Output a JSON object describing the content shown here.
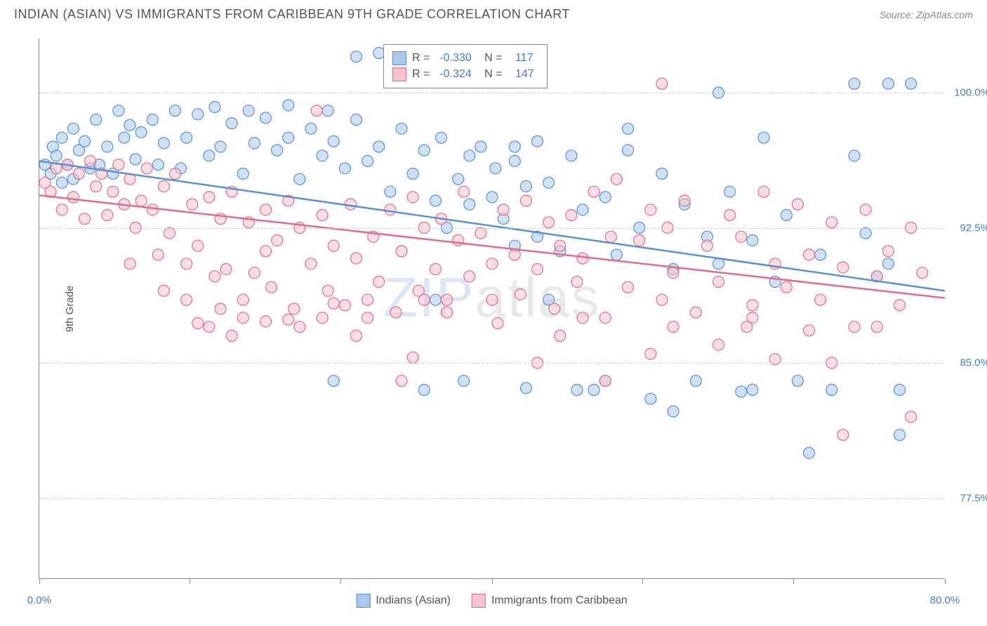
{
  "title": "INDIAN (ASIAN) VS IMMIGRANTS FROM CARIBBEAN 9TH GRADE CORRELATION CHART",
  "source": "Source: ZipAtlas.com",
  "ylabel": "9th Grade",
  "watermark_bold": "ZIP",
  "watermark_thin": "atlas",
  "chart": {
    "type": "scatter",
    "xlim": [
      0,
      80
    ],
    "ylim": [
      73,
      103
    ],
    "xticks": [
      0,
      13.3,
      26.6,
      40,
      53.3,
      66.6,
      80
    ],
    "xtick_labels": {
      "0": "0.0%",
      "80": "80.0%"
    },
    "yticks": [
      77.5,
      85.0,
      92.5,
      100.0
    ],
    "ytick_labels": [
      "77.5%",
      "85.0%",
      "92.5%",
      "100.0%"
    ],
    "grid_color": "#cccccc",
    "axis_color": "#888888",
    "background_color": "#ffffff",
    "marker_radius": 8,
    "marker_opacity": 0.55,
    "line_width": 2.5,
    "series": [
      {
        "name": "Indians (Asian)",
        "color_fill": "#a8c8ec",
        "color_stroke": "#5b8fd4",
        "R": "-0.330",
        "N": "117",
        "trend": {
          "x1": 0,
          "y1": 96.2,
          "x2": 80,
          "y2": 89.0
        },
        "points": [
          [
            0.5,
            96
          ],
          [
            1,
            95.5
          ],
          [
            1.2,
            97
          ],
          [
            1.5,
            96.5
          ],
          [
            2,
            95
          ],
          [
            2,
            97.5
          ],
          [
            2.5,
            96
          ],
          [
            3,
            98
          ],
          [
            3,
            95.2
          ],
          [
            3.5,
            96.8
          ],
          [
            4,
            97.3
          ],
          [
            4.5,
            95.8
          ],
          [
            5,
            98.5
          ],
          [
            5.3,
            96
          ],
          [
            6,
            97
          ],
          [
            6.5,
            95.5
          ],
          [
            7,
            99
          ],
          [
            7.5,
            97.5
          ],
          [
            8,
            98.2
          ],
          [
            8.5,
            96.3
          ],
          [
            9,
            97.8
          ],
          [
            10,
            98.5
          ],
          [
            10.5,
            96
          ],
          [
            11,
            97.2
          ],
          [
            12,
            99
          ],
          [
            12.5,
            95.8
          ],
          [
            13,
            97.5
          ],
          [
            14,
            98.8
          ],
          [
            15,
            96.5
          ],
          [
            15.5,
            99.2
          ],
          [
            16,
            97
          ],
          [
            17,
            98.3
          ],
          [
            18,
            95.5
          ],
          [
            18.5,
            99
          ],
          [
            19,
            97.2
          ],
          [
            20,
            98.6
          ],
          [
            21,
            96.8
          ],
          [
            22,
            97.5
          ],
          [
            22,
            99.3
          ],
          [
            23,
            95.2
          ],
          [
            24,
            98
          ],
          [
            25,
            96.5
          ],
          [
            25.5,
            99
          ],
          [
            26,
            97.3
          ],
          [
            27,
            95.8
          ],
          [
            28,
            98.5
          ],
          [
            28,
            102
          ],
          [
            29,
            96.2
          ],
          [
            30,
            97
          ],
          [
            30,
            102.2
          ],
          [
            31,
            94.5
          ],
          [
            32,
            98
          ],
          [
            33,
            95.5
          ],
          [
            34,
            96.8
          ],
          [
            35,
            94
          ],
          [
            35.5,
            97.5
          ],
          [
            36,
            92.5
          ],
          [
            37,
            95.2
          ],
          [
            38,
            96.5
          ],
          [
            38,
            93.8
          ],
          [
            39,
            97
          ],
          [
            40,
            94.2
          ],
          [
            40.3,
            95.8
          ],
          [
            41,
            93
          ],
          [
            42,
            96.2
          ],
          [
            42,
            91.5
          ],
          [
            43,
            94.8
          ],
          [
            44,
            92
          ],
          [
            44,
            97.3
          ],
          [
            45,
            95
          ],
          [
            46,
            91.2
          ],
          [
            47,
            96.5
          ],
          [
            48,
            93.5
          ],
          [
            49,
            83.5
          ],
          [
            50,
            94.2
          ],
          [
            51,
            91
          ],
          [
            52,
            96.8
          ],
          [
            53,
            92.5
          ],
          [
            54,
            83
          ],
          [
            55,
            95.5
          ],
          [
            56,
            90.2
          ],
          [
            57,
            93.8
          ],
          [
            58,
            84
          ],
          [
            59,
            92
          ],
          [
            60,
            90.5
          ],
          [
            61,
            94.5
          ],
          [
            62,
            83.4
          ],
          [
            63,
            91.8
          ],
          [
            64,
            97.5
          ],
          [
            65,
            89.5
          ],
          [
            66,
            93.2
          ],
          [
            67,
            84
          ],
          [
            68,
            80
          ],
          [
            69,
            91
          ],
          [
            70,
            83.5
          ],
          [
            72,
            96.5
          ],
          [
            73,
            92.2
          ],
          [
            74,
            89.8
          ],
          [
            75,
            90.5
          ],
          [
            76,
            81
          ],
          [
            56,
            82.3
          ],
          [
            43,
            83.6
          ],
          [
            34,
            83.5
          ],
          [
            45,
            88.5
          ],
          [
            76,
            83.5
          ],
          [
            52,
            98
          ],
          [
            60,
            100
          ],
          [
            72,
            100.5
          ],
          [
            75,
            100.5
          ],
          [
            77,
            100.5
          ],
          [
            63,
            83.5
          ],
          [
            50,
            84
          ],
          [
            47.5,
            83.5
          ],
          [
            37.5,
            84
          ],
          [
            26,
            84
          ],
          [
            35,
            88.5
          ],
          [
            42,
            97
          ]
        ]
      },
      {
        "name": "Immigrants from Caribbean",
        "color_fill": "#f4c2cd",
        "color_stroke": "#e26b8a",
        "R": "-0.324",
        "N": "147",
        "trend": {
          "x1": 0,
          "y1": 94.3,
          "x2": 80,
          "y2": 88.6
        },
        "points": [
          [
            0.5,
            95
          ],
          [
            1,
            94.5
          ],
          [
            1.5,
            95.8
          ],
          [
            2,
            93.5
          ],
          [
            2.5,
            96
          ],
          [
            3,
            94.2
          ],
          [
            3.5,
            95.5
          ],
          [
            4,
            93
          ],
          [
            4.5,
            96.2
          ],
          [
            5,
            94.8
          ],
          [
            5.5,
            95.5
          ],
          [
            6,
            93.2
          ],
          [
            6.5,
            94.5
          ],
          [
            7,
            96
          ],
          [
            7.5,
            93.8
          ],
          [
            8,
            95.2
          ],
          [
            8.5,
            92.5
          ],
          [
            9,
            94
          ],
          [
            9.5,
            95.8
          ],
          [
            10,
            93.5
          ],
          [
            10.5,
            91
          ],
          [
            11,
            94.8
          ],
          [
            11.5,
            92.2
          ],
          [
            12,
            95.5
          ],
          [
            13,
            90.5
          ],
          [
            13.5,
            93.8
          ],
          [
            14,
            91.5
          ],
          [
            15,
            94.2
          ],
          [
            15.5,
            89.8
          ],
          [
            16,
            93
          ],
          [
            16.5,
            90.2
          ],
          [
            17,
            94.5
          ],
          [
            18,
            88.5
          ],
          [
            18.5,
            92.8
          ],
          [
            19,
            90
          ],
          [
            20,
            93.5
          ],
          [
            20.5,
            89.2
          ],
          [
            21,
            91.8
          ],
          [
            22,
            94
          ],
          [
            22.5,
            88
          ],
          [
            23,
            92.5
          ],
          [
            24,
            90.5
          ],
          [
            24.5,
            99
          ],
          [
            25,
            93.2
          ],
          [
            25.5,
            89
          ],
          [
            26,
            91.5
          ],
          [
            27,
            88.2
          ],
          [
            27.5,
            93.8
          ],
          [
            28,
            90.8
          ],
          [
            29,
            87.5
          ],
          [
            29.5,
            92
          ],
          [
            30,
            89.5
          ],
          [
            31,
            93.5
          ],
          [
            31.5,
            87.8
          ],
          [
            32,
            91.2
          ],
          [
            33,
            94.2
          ],
          [
            33.5,
            89
          ],
          [
            34,
            92.5
          ],
          [
            35,
            90.2
          ],
          [
            35.5,
            93
          ],
          [
            36,
            88.5
          ],
          [
            37,
            91.8
          ],
          [
            37.5,
            94.5
          ],
          [
            38,
            89.8
          ],
          [
            39,
            92.2
          ],
          [
            40,
            90.5
          ],
          [
            40.5,
            87.2
          ],
          [
            41,
            93.5
          ],
          [
            42,
            91
          ],
          [
            42.5,
            88.8
          ],
          [
            43,
            94
          ],
          [
            44,
            90.2
          ],
          [
            45,
            92.8
          ],
          [
            45.5,
            88
          ],
          [
            46,
            91.5
          ],
          [
            47,
            93.2
          ],
          [
            47.5,
            89.5
          ],
          [
            48,
            90.8
          ],
          [
            49,
            94.5
          ],
          [
            50,
            87.5
          ],
          [
            50.5,
            92
          ],
          [
            51,
            95.2
          ],
          [
            52,
            89.2
          ],
          [
            53,
            91.8
          ],
          [
            54,
            93.5
          ],
          [
            55,
            88.5
          ],
          [
            55.5,
            92.5
          ],
          [
            56,
            90
          ],
          [
            57,
            94
          ],
          [
            58,
            87.8
          ],
          [
            59,
            91.5
          ],
          [
            60,
            89.5
          ],
          [
            61,
            93.2
          ],
          [
            62,
            92
          ],
          [
            63,
            88.2
          ],
          [
            64,
            94.5
          ],
          [
            65,
            90.5
          ],
          [
            66,
            89.2
          ],
          [
            67,
            93.8
          ],
          [
            68,
            91
          ],
          [
            69,
            88.5
          ],
          [
            70,
            92.8
          ],
          [
            71,
            90.3
          ],
          [
            72,
            87
          ],
          [
            73,
            93.5
          ],
          [
            74,
            89.8
          ],
          [
            75,
            91.2
          ],
          [
            76,
            88.2
          ],
          [
            77,
            92.5
          ],
          [
            78,
            90
          ],
          [
            13,
            88.5
          ],
          [
            15,
            87
          ],
          [
            16,
            88
          ],
          [
            18,
            87.5
          ],
          [
            20,
            87.3
          ],
          [
            22,
            87.4
          ],
          [
            25,
            87.5
          ],
          [
            26,
            88.3
          ],
          [
            29,
            88.5
          ],
          [
            32,
            84
          ],
          [
            34,
            88.5
          ],
          [
            36,
            87.8
          ],
          [
            40,
            88.5
          ],
          [
            44,
            85
          ],
          [
            46,
            86.5
          ],
          [
            48,
            87.5
          ],
          [
            50,
            84
          ],
          [
            54,
            85.5
          ],
          [
            56,
            87
          ],
          [
            60,
            86
          ],
          [
            63,
            87.5
          ],
          [
            65,
            85.2
          ],
          [
            68,
            86.8
          ],
          [
            70,
            85
          ],
          [
            62.5,
            87
          ],
          [
            71,
            81
          ],
          [
            74,
            87
          ],
          [
            77,
            82
          ],
          [
            55,
            100.5
          ],
          [
            33,
            85.3
          ],
          [
            28,
            86.5
          ],
          [
            23,
            87
          ],
          [
            20,
            91.2
          ],
          [
            17,
            86.5
          ],
          [
            14,
            87.2
          ],
          [
            11,
            89
          ],
          [
            8,
            90.5
          ]
        ]
      }
    ]
  },
  "legend_bottom": [
    {
      "label": "Indians (Asian)",
      "fill": "#a8c8ec",
      "stroke": "#5b8fd4"
    },
    {
      "label": "Immigrants from Caribbean",
      "fill": "#f4c2cd",
      "stroke": "#e26b8a"
    }
  ]
}
